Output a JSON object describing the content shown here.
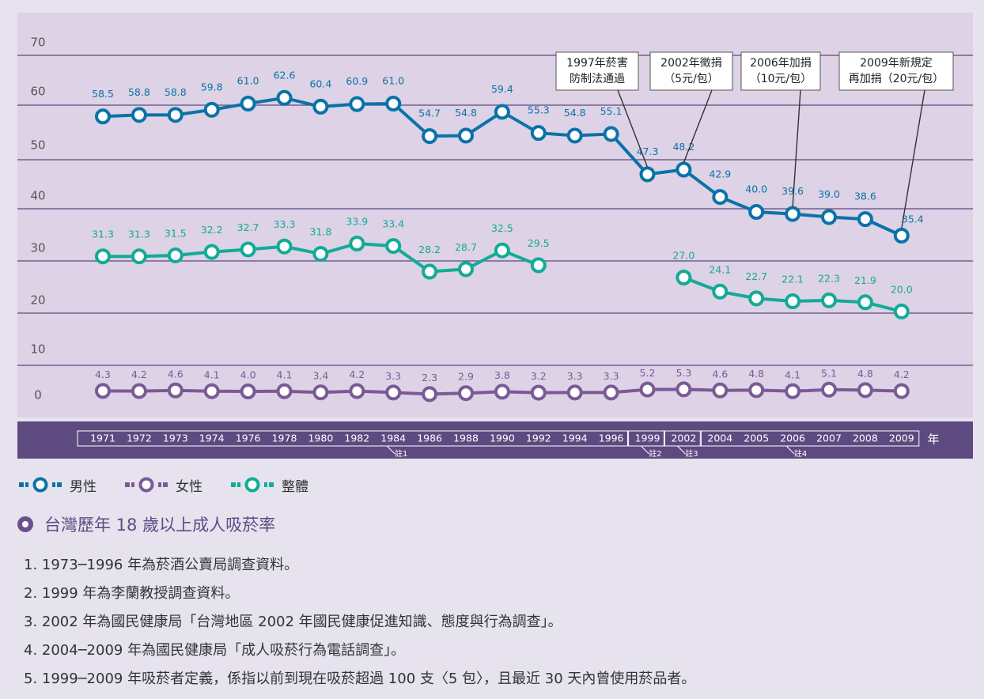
{
  "chart_data": {
    "type": "line",
    "x": [
      "1971",
      "1972",
      "1973",
      "1974",
      "1976",
      "1978",
      "1980",
      "1982",
      "1984",
      "1986",
      "1988",
      "1990",
      "1992",
      "1994",
      "1996",
      "1999",
      "2002",
      "2004",
      "2005",
      "2006",
      "2007",
      "2008",
      "2009"
    ],
    "x_unit": "年",
    "y_ticks": [
      "70",
      "60",
      "50",
      "40",
      "30",
      "20",
      "10",
      "0"
    ],
    "series": [
      {
        "name": "男性",
        "color": "#0b72a8",
        "values": [
          58.5,
          58.8,
          58.8,
          59.8,
          61.0,
          62.6,
          60.4,
          60.9,
          61.0,
          54.7,
          54.8,
          59.4,
          55.3,
          54.8,
          55.1,
          47.3,
          48.2,
          42.9,
          40.0,
          39.6,
          39.0,
          38.6,
          35.4
        ],
        "labels": [
          "58.5",
          "58.8",
          "58.8",
          "59.8",
          "61.0",
          "62.6",
          "60.4",
          "60.9",
          "61.0",
          "54.7",
          "54.8",
          "59.4",
          "55.3",
          "54.8",
          "55.1",
          "47.3",
          "48.2",
          "42.9",
          "40.0",
          "39.6",
          "39.0",
          "38.6",
          "35.4"
        ]
      },
      {
        "name": "女性",
        "color": "#7a5a96",
        "values": [
          4.3,
          4.2,
          4.6,
          4.1,
          4.0,
          4.1,
          3.4,
          4.2,
          3.3,
          2.3,
          2.9,
          3.8,
          3.2,
          3.3,
          3.3,
          5.2,
          5.3,
          4.6,
          4.8,
          4.1,
          5.1,
          4.8,
          4.2
        ],
        "labels": [
          "4.3",
          "4.2",
          "4.6",
          "4.1",
          "4.0",
          "4.1",
          "3.4",
          "4.2",
          "3.3",
          "2.3",
          "2.9",
          "3.8",
          "3.2",
          "3.3",
          "3.3",
          "5.2",
          "5.3",
          "4.6",
          "4.8",
          "4.1",
          "5.1",
          "4.8",
          "4.2"
        ]
      },
      {
        "name": "整體",
        "color": "#11ab96",
        "values": [
          31.3,
          31.3,
          31.5,
          32.2,
          32.7,
          33.3,
          31.8,
          33.9,
          33.4,
          28.2,
          28.7,
          32.5,
          29.5,
          null,
          null,
          null,
          27.0,
          24.1,
          22.7,
          22.1,
          22.3,
          21.9,
          20.0
        ],
        "labels": [
          "31.3",
          "31.3",
          "31.5",
          "32.2",
          "32.7",
          "33.3",
          "31.8",
          "33.9",
          "33.4",
          "28.2",
          "28.7",
          "32.5",
          "29.5",
          "",
          "",
          "",
          "27.0",
          "24.1",
          "22.7",
          "22.1",
          "22.3",
          "21.9",
          "20.0"
        ]
      }
    ],
    "notes_markers": [
      {
        "text": "註1",
        "x": "1984"
      },
      {
        "text": "註2",
        "x": "1999"
      },
      {
        "text": "註3",
        "x": "2002"
      },
      {
        "text": "註4",
        "x": "2006"
      }
    ],
    "annotations": [
      {
        "lines": [
          "1997年菸害",
          "防制法通過"
        ],
        "x": "1999",
        "series": 0
      },
      {
        "lines": [
          "2002年徵捐",
          "（5元/包）"
        ],
        "x": "2002",
        "series": 0
      },
      {
        "lines": [
          "2006年加捐",
          "（10元/包）"
        ],
        "x": "2006",
        "series": 0
      },
      {
        "lines": [
          "2009年新規定",
          "再加捐（20元/包）"
        ],
        "x": "2009",
        "series": 0
      }
    ]
  },
  "legend": [
    {
      "label": "男性",
      "color": "#0b72a8"
    },
    {
      "label": "女性",
      "color": "#7a5a96"
    },
    {
      "label": "整體",
      "color": "#11ab96"
    }
  ],
  "caption": {
    "title": "台灣歷年 18 歲以上成人吸菸率"
  },
  "notes": [
    "1. 1973─1996 年為菸酒公賣局調查資料。",
    "2. 1999 年為李蘭教授調查資料。",
    "3. 2002 年為國民健康局「台灣地區 2002 年國民健康促進知識、態度與行為調查」。",
    "4. 2004─2009 年為國民健康局「成人吸菸行為電話調查」。",
    "5. 1999─2009 年吸菸者定義，係指以前到現在吸菸超過 100 支〈5 包〉，且最近 30 天內曾使用菸品者。"
  ]
}
